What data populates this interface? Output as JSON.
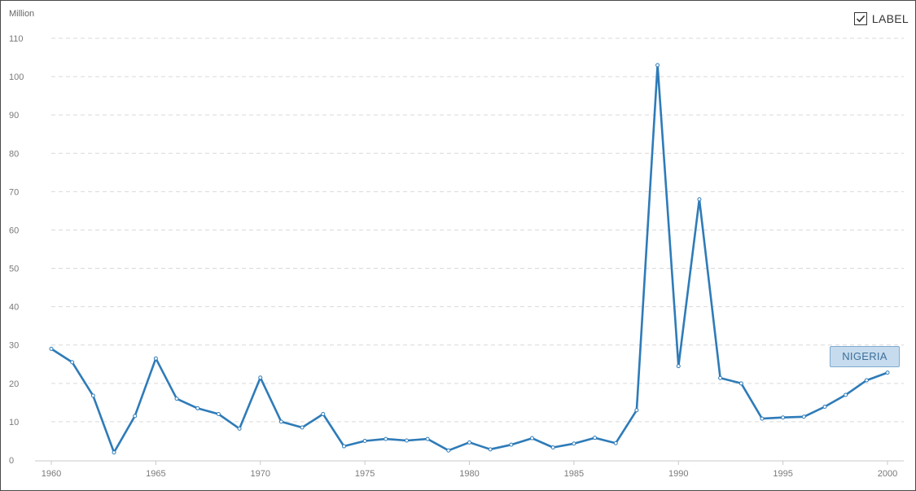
{
  "legend_control": {
    "label": "LABEL",
    "checked": true,
    "icon": "checkbox-checked-icon"
  },
  "chart_data": {
    "type": "line",
    "y_unit": "Million",
    "xlabel": "",
    "ylabel": "",
    "xlim": [
      1960,
      2000
    ],
    "ylim": [
      0,
      110
    ],
    "grid": true,
    "x_ticks": [
      1960,
      1965,
      1970,
      1975,
      1980,
      1985,
      1990,
      1995,
      2000
    ],
    "y_ticks": [
      0,
      10,
      20,
      30,
      40,
      50,
      60,
      70,
      80,
      90,
      100,
      110
    ],
    "color": "#2e7bb8",
    "series": [
      {
        "name": "NIGERIA",
        "x": [
          1960,
          1961,
          1962,
          1963,
          1964,
          1965,
          1966,
          1967,
          1968,
          1969,
          1970,
          1971,
          1972,
          1973,
          1974,
          1975,
          1976,
          1977,
          1978,
          1979,
          1980,
          1981,
          1982,
          1983,
          1984,
          1985,
          1986,
          1987,
          1988,
          1989,
          1990,
          1991,
          1992,
          1993,
          1994,
          1995,
          1996,
          1997,
          1998,
          1999,
          2000
        ],
        "values": [
          29,
          25.5,
          16.8,
          2,
          11.5,
          26.5,
          16,
          13.5,
          12,
          8.2,
          21.5,
          10,
          8.5,
          12,
          3.6,
          5,
          5.5,
          5.1,
          5.5,
          2.5,
          4.6,
          2.8,
          4,
          5.7,
          3.3,
          4.3,
          5.8,
          4.4,
          13,
          103,
          24.5,
          68,
          21.4,
          20,
          10.8,
          11.1,
          11.3,
          13.9,
          17,
          20.8,
          22.8
        ]
      }
    ]
  }
}
